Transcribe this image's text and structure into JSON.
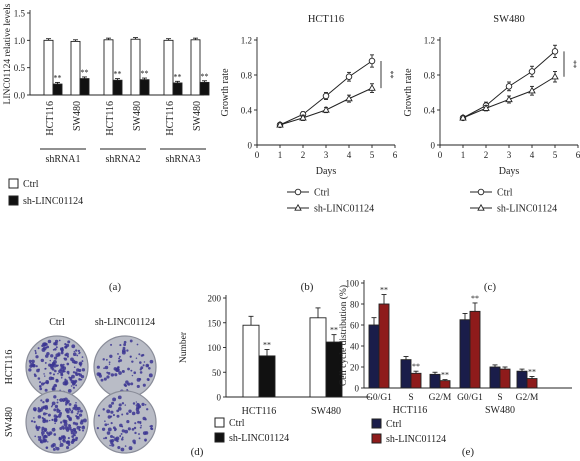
{
  "colors": {
    "ctrl_fill": "#ffffff",
    "sh_fill": "#111111",
    "navy": "#1a1d4a",
    "red": "#8e1b1b",
    "axis": "#222222",
    "plate_bg": "#b9bcc6",
    "colony": "#3b3592"
  },
  "panel_labels": [
    "(a)",
    "(b)",
    "(c)",
    "(d)",
    "(e)"
  ],
  "legend": {
    "ctrl": "Ctrl",
    "sh": "sh-LINC01124"
  },
  "sig": "**",
  "photo": {
    "col_labels": [
      "Ctrl",
      "sh-LINC01124"
    ],
    "row_labels": [
      "HCT116",
      "SW480"
    ]
  },
  "chart_data": [
    {
      "id": "a",
      "type": "bar",
      "ylabel": "LINC01124 relative levels",
      "ylim": [
        0,
        1.5
      ],
      "yticks": [
        0,
        0.5,
        1.0,
        1.5
      ],
      "categories": [
        "HCT116",
        "SW480",
        "HCT116",
        "SW480",
        "HCT116",
        "SW480"
      ],
      "groups": [
        "shRNA1",
        "shRNA2",
        "shRNA3"
      ],
      "series": [
        {
          "name": "Ctrl",
          "values": [
            1.0,
            0.98,
            1.01,
            1.02,
            1.0,
            1.01
          ],
          "errors": [
            0.03,
            0.03,
            0.03,
            0.03,
            0.03,
            0.03
          ]
        },
        {
          "name": "sh-LINC01124",
          "values": [
            0.2,
            0.3,
            0.27,
            0.28,
            0.22,
            0.23
          ],
          "errors": [
            0.03,
            0.03,
            0.03,
            0.03,
            0.03,
            0.03
          ]
        }
      ],
      "sig_series": 1
    },
    {
      "id": "b",
      "type": "line",
      "title": "HCT116",
      "xlabel": "Days",
      "ylabel": "Growth rate",
      "xlim": [
        0,
        6
      ],
      "xticks": [
        0,
        1,
        2,
        3,
        4,
        5,
        6
      ],
      "ylim": [
        0,
        1.2
      ],
      "yticks": [
        0,
        0.4,
        0.8,
        1.2
      ],
      "x": [
        1,
        2,
        3,
        4,
        5
      ],
      "series": [
        {
          "name": "Ctrl",
          "marker": "circle",
          "values": [
            0.23,
            0.35,
            0.56,
            0.78,
            0.96
          ],
          "errors": [
            0.02,
            0.03,
            0.04,
            0.05,
            0.07
          ]
        },
        {
          "name": "sh-LINC01124",
          "marker": "triangle",
          "values": [
            0.23,
            0.31,
            0.4,
            0.53,
            0.65
          ],
          "errors": [
            0.02,
            0.03,
            0.03,
            0.04,
            0.05
          ]
        }
      ],
      "sig": "**"
    },
    {
      "id": "c",
      "type": "line",
      "title": "SW480",
      "xlabel": "Days",
      "ylabel": "Growth rate",
      "xlim": [
        0,
        6
      ],
      "xticks": [
        0,
        1,
        2,
        3,
        4,
        5,
        6
      ],
      "ylim": [
        0,
        1.2
      ],
      "yticks": [
        0,
        0.4,
        0.8,
        1.2
      ],
      "x": [
        1,
        2,
        3,
        4,
        5
      ],
      "series": [
        {
          "name": "Ctrl",
          "marker": "circle",
          "values": [
            0.31,
            0.45,
            0.67,
            0.84,
            1.07
          ],
          "errors": [
            0.02,
            0.04,
            0.05,
            0.06,
            0.07
          ]
        },
        {
          "name": "sh-LINC01124",
          "marker": "triangle",
          "values": [
            0.31,
            0.42,
            0.52,
            0.62,
            0.78
          ],
          "errors": [
            0.02,
            0.03,
            0.04,
            0.05,
            0.06
          ]
        }
      ],
      "sig": "**"
    },
    {
      "id": "d",
      "type": "bar",
      "ylabel": "Number",
      "ylim": [
        0,
        200
      ],
      "yticks": [
        0,
        50,
        100,
        150,
        200
      ],
      "categories": [
        "HCT116",
        "SW480"
      ],
      "series": [
        {
          "name": "Ctrl",
          "values": [
            145,
            160
          ],
          "errors": [
            18,
            20
          ]
        },
        {
          "name": "sh-LINC01124",
          "values": [
            83,
            111
          ],
          "errors": [
            13,
            15
          ]
        }
      ],
      "sig_series": 1
    },
    {
      "id": "e",
      "type": "bar",
      "ylabel": "Cell cycle distribution (%)",
      "ylim": [
        0,
        100
      ],
      "yticks": [
        0,
        20,
        40,
        60,
        80,
        100
      ],
      "categories": [
        "G0/G1",
        "S",
        "G2/M",
        "G0/G1",
        "S",
        "G2/M"
      ],
      "groups": [
        "HCT116",
        "SW480"
      ],
      "series": [
        {
          "name": "Ctrl",
          "values": [
            60,
            27,
            13,
            65,
            20,
            16
          ],
          "errors": [
            7,
            3,
            2,
            6,
            2,
            2
          ]
        },
        {
          "name": "sh-LINC01124",
          "values": [
            80,
            14,
            7,
            73,
            18,
            9
          ],
          "errors": [
            9,
            2,
            1,
            8,
            2,
            2
          ]
        }
      ],
      "sig_flags": [
        [
          false,
          false,
          false,
          false,
          false,
          false
        ],
        [
          true,
          true,
          true,
          true,
          false,
          true
        ]
      ]
    }
  ]
}
